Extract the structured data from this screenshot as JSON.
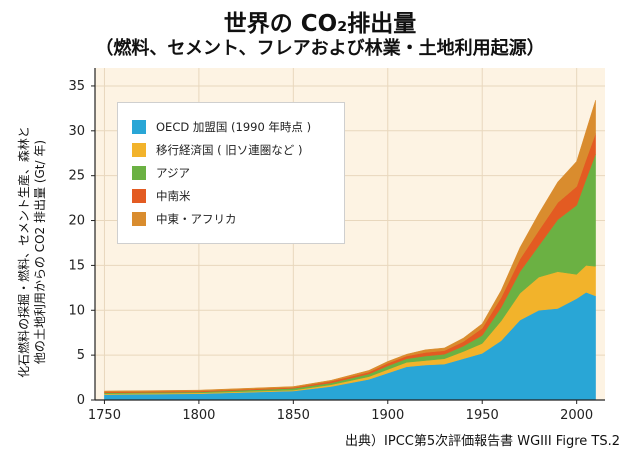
{
  "title": "世界の CO₂排出量",
  "subtitle": "（燃料、セメント、フレアおよび林業・土地利用起源）",
  "ylabel_line1": "化石燃料の採掘・燃料、セメント生産、森林と",
  "ylabel_line2": "他の土地利用からの CO2 排出量 (Gt/ 年)",
  "source": "出典）IPCC第5次評価報告書 WGIII Figre TS.2",
  "colors": {
    "OECD": "#29a6d6",
    "transition": "#f2b32b",
    "asia": "#6bb143",
    "latam": "#e35b22",
    "mea": "#d98c2e",
    "plot_bg": "#fdf3e3",
    "grid": "#e8d7bd"
  },
  "chart_data": {
    "type": "area",
    "stacked": true,
    "xlim": [
      1750,
      2010
    ],
    "ylim": [
      0,
      35
    ],
    "xticks": [
      1750,
      1800,
      1850,
      1900,
      1950,
      2000
    ],
    "yticks": [
      0,
      5,
      10,
      15,
      20,
      25,
      30,
      35
    ],
    "grid": true,
    "legend_position": "top-left",
    "x": [
      1750,
      1800,
      1850,
      1870,
      1890,
      1900,
      1910,
      1920,
      1930,
      1940,
      1950,
      1960,
      1970,
      1980,
      1990,
      2000,
      2005,
      2010
    ],
    "series": [
      {
        "name": "OECD 加盟国 (1990 年時点 )",
        "key": "OECD",
        "values": [
          0.6,
          0.7,
          1.0,
          1.5,
          2.3,
          3.0,
          3.7,
          3.9,
          4.0,
          4.6,
          5.2,
          6.6,
          8.9,
          10.0,
          10.2,
          11.3,
          12.0,
          11.6
        ]
      },
      {
        "name": "移行経済国 ( 旧ソ連圏など )",
        "key": "transition",
        "values": [
          0.1,
          0.1,
          0.1,
          0.2,
          0.3,
          0.4,
          0.5,
          0.5,
          0.6,
          0.8,
          1.1,
          2.2,
          3.0,
          3.7,
          4.1,
          2.7,
          3.0,
          3.3
        ]
      },
      {
        "name": "アジア",
        "key": "asia",
        "values": [
          0.1,
          0.1,
          0.2,
          0.2,
          0.3,
          0.4,
          0.4,
          0.5,
          0.5,
          0.6,
          0.9,
          1.5,
          2.4,
          3.5,
          5.8,
          7.7,
          9.6,
          12.5
        ]
      },
      {
        "name": "中南米",
        "key": "latam",
        "values": [
          0.1,
          0.1,
          0.1,
          0.2,
          0.2,
          0.3,
          0.3,
          0.4,
          0.4,
          0.5,
          0.8,
          1.1,
          1.4,
          1.7,
          1.9,
          2.1,
          2.2,
          2.3
        ]
      },
      {
        "name": "中東・アフリカ",
        "key": "mea",
        "values": [
          0.1,
          0.1,
          0.1,
          0.1,
          0.2,
          0.2,
          0.2,
          0.3,
          0.3,
          0.4,
          0.5,
          0.8,
          1.3,
          1.9,
          2.3,
          2.8,
          3.2,
          3.7
        ]
      }
    ]
  }
}
